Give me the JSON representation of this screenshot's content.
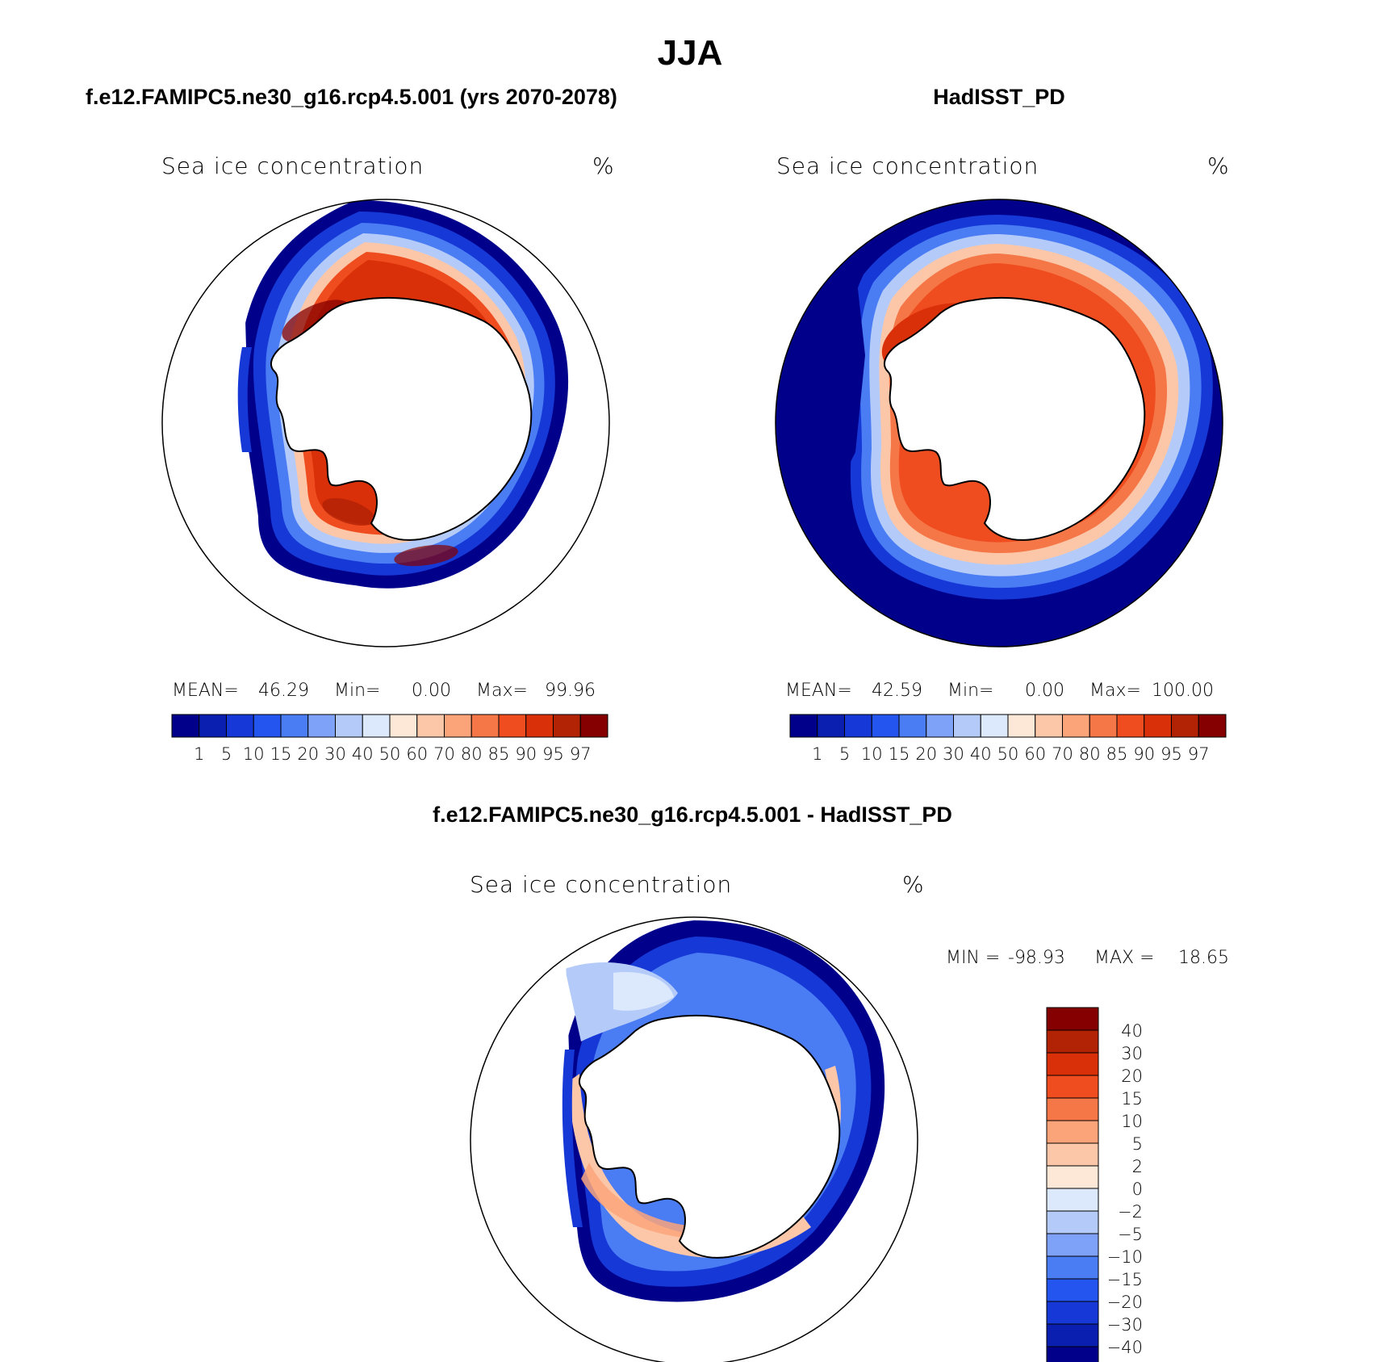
{
  "figure": {
    "title": "JJA",
    "panel_left_title": "f.e12.FAMIPC5.ne30_g16.rcp4.5.001 (yrs 2070-2078)",
    "panel_right_title": "HadISST_PD",
    "panel_bottom_title": "f.e12.FAMIPC5.ne30_g16.rcp4.5.001 - HadISST_PD"
  },
  "chart_data": [
    {
      "type": "heatmap",
      "subtitle": "Sea ice concentration",
      "units": "%",
      "projection": "south polar stereographic",
      "stats": {
        "mean_label": "MEAN=",
        "mean": "46.29",
        "min_label": "Min=",
        "min": "0.00",
        "max_label": "Max=",
        "max": "99.96"
      },
      "levels": [
        "1",
        "5",
        "10",
        "15",
        "20",
        "30",
        "40",
        "50",
        "60",
        "70",
        "80",
        "85",
        "90",
        "95",
        "97"
      ],
      "colors": [
        "#00008b",
        "#0a1fb0",
        "#1638d6",
        "#2455ef",
        "#4a7cf4",
        "#7ea2f7",
        "#b4cbf9",
        "#dce8fc",
        "#fde8d8",
        "#fcc7a8",
        "#fba47a",
        "#f57747",
        "#ef4d1f",
        "#d9300a",
        "#b22205",
        "#850000"
      ]
    },
    {
      "type": "heatmap",
      "subtitle": "Sea ice concentration",
      "units": "%",
      "projection": "south polar stereographic",
      "stats": {
        "mean_label": "MEAN=",
        "mean": "42.59",
        "min_label": "Min=",
        "min": "0.00",
        "max_label": "Max=",
        "max": "100.00"
      },
      "levels": [
        "1",
        "5",
        "10",
        "15",
        "20",
        "30",
        "40",
        "50",
        "60",
        "70",
        "80",
        "85",
        "90",
        "95",
        "97"
      ],
      "colors": [
        "#00008b",
        "#0a1fb0",
        "#1638d6",
        "#2455ef",
        "#4a7cf4",
        "#7ea2f7",
        "#b4cbf9",
        "#dce8fc",
        "#fde8d8",
        "#fcc7a8",
        "#fba47a",
        "#f57747",
        "#ef4d1f",
        "#d9300a",
        "#b22205",
        "#850000"
      ]
    },
    {
      "type": "heatmap",
      "subtitle": "Sea ice concentration",
      "units": "%",
      "projection": "south polar stereographic",
      "stats": {
        "min_label": "MIN =",
        "min": "-98.93",
        "max_label": "MAX =",
        "max": "18.65"
      },
      "levels": [
        "40",
        "30",
        "20",
        "15",
        "10",
        "5",
        "2",
        "0",
        "-2",
        "-5",
        "-10",
        "-15",
        "-20",
        "-30",
        "-40"
      ],
      "colors": [
        "#850000",
        "#b22205",
        "#d9300a",
        "#ef4d1f",
        "#f57747",
        "#fba47a",
        "#fcc7a8",
        "#fde8d8",
        "#dce8fc",
        "#b4cbf9",
        "#7ea2f7",
        "#4a7cf4",
        "#2455ef",
        "#1638d6",
        "#0a1fb0",
        "#00008b"
      ]
    }
  ]
}
